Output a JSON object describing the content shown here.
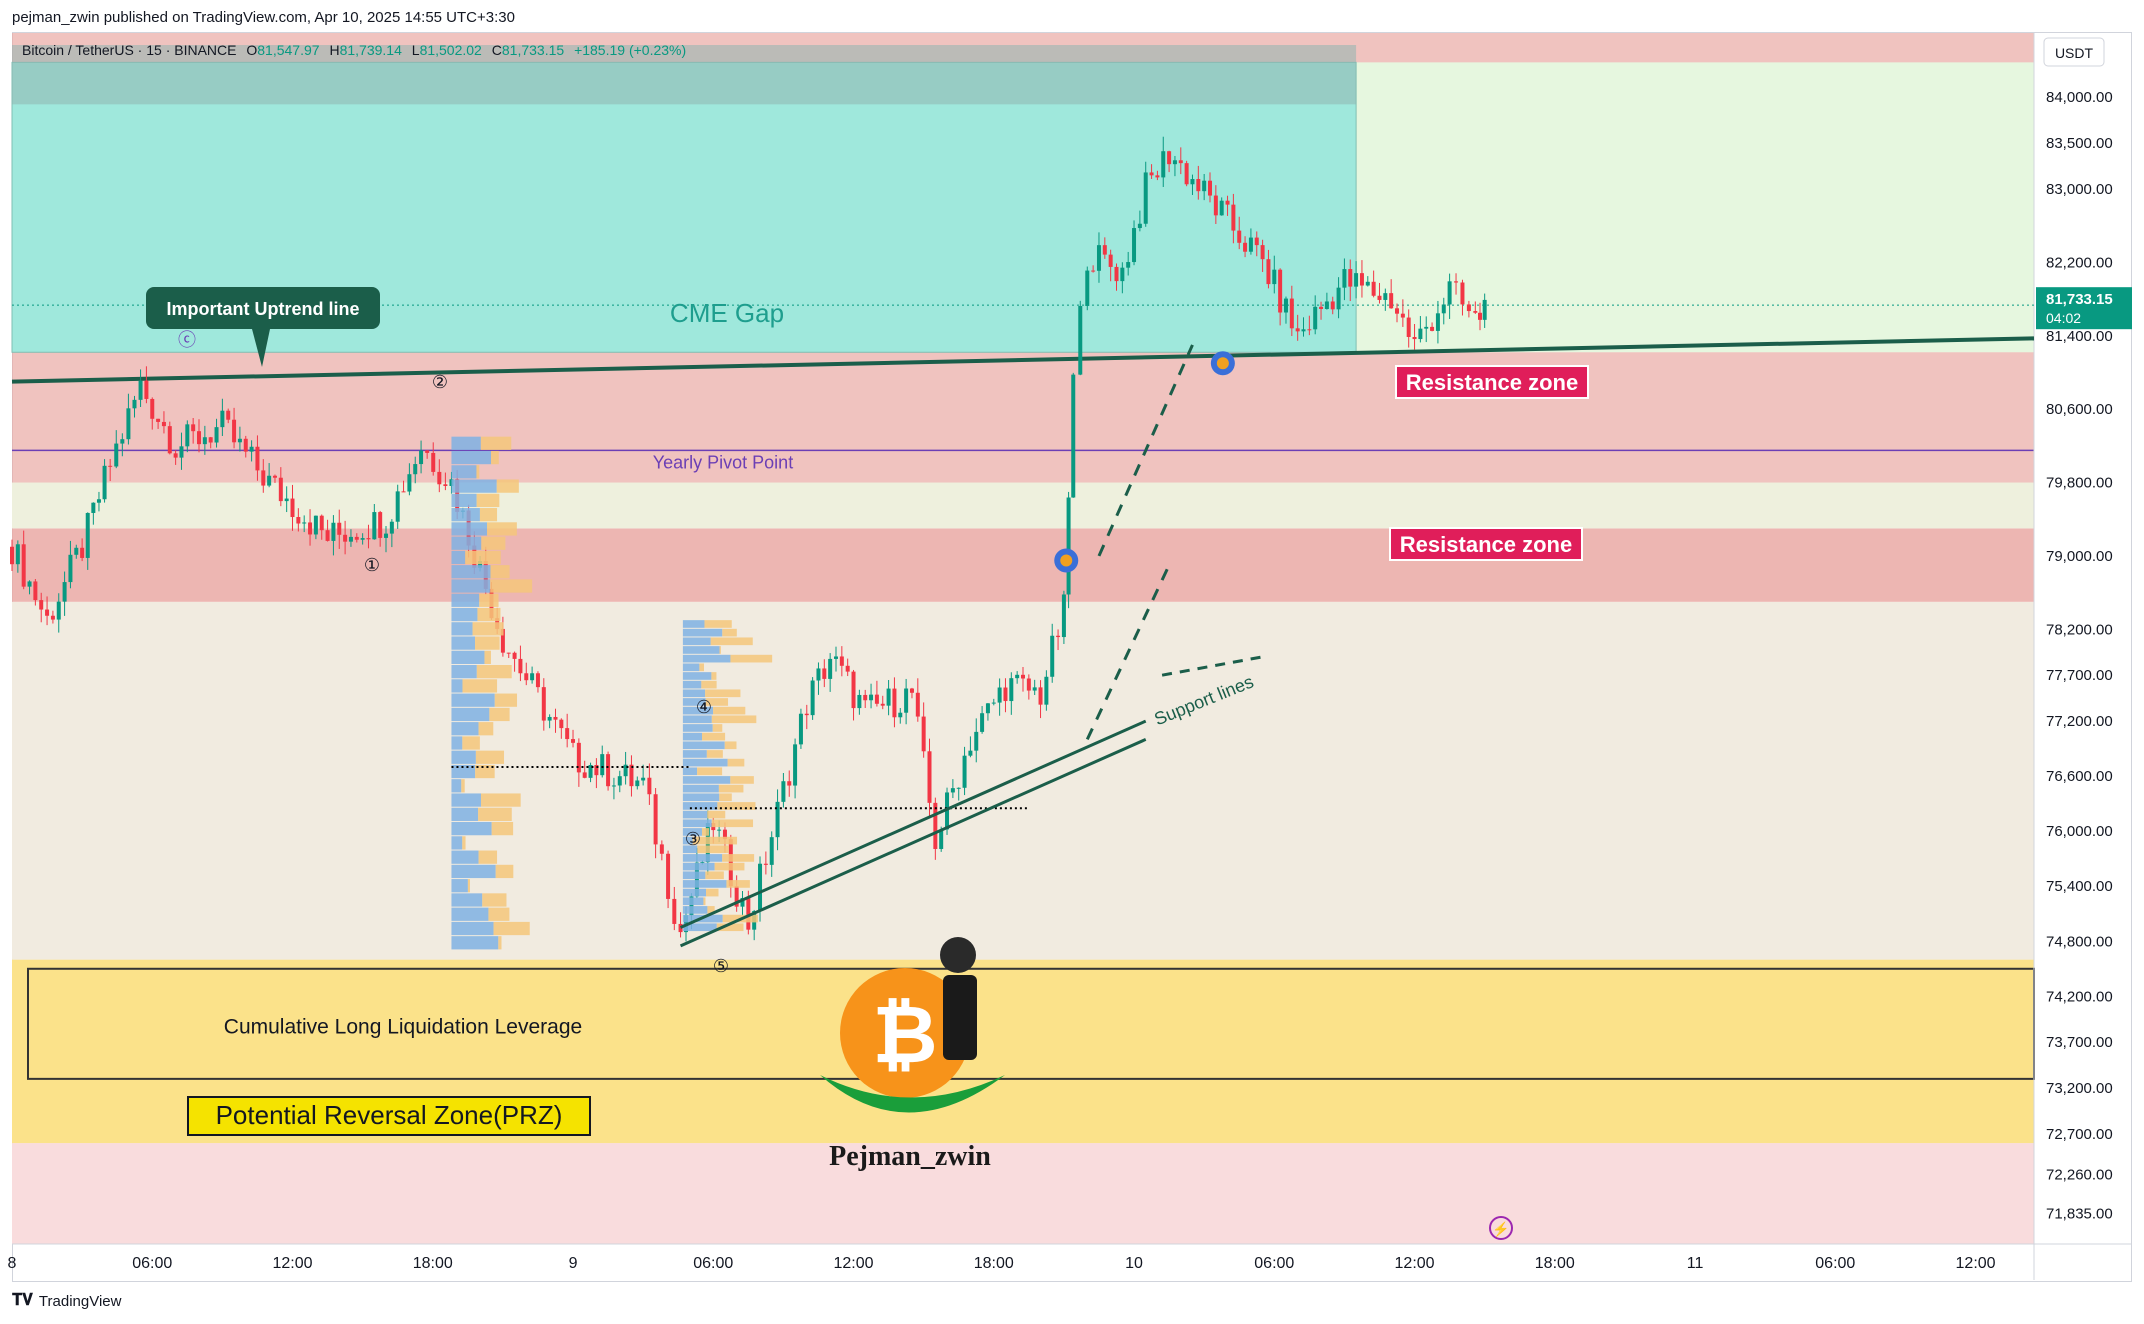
{
  "header": {
    "published": "pejman_zwin published on TradingView.com, Apr 10, 2025 14:55 UTC+3:30"
  },
  "ohlc": {
    "symbol": "Bitcoin / TetherUS · 15 · BINANCE",
    "o_label": "O",
    "o": "81,547.97",
    "h_label": "H",
    "h": "81,739.14",
    "l_label": "L",
    "l": "81,502.02",
    "c_label": "C",
    "c": "81,733.15",
    "change": "+185.19 (+0.23%)"
  },
  "footer": {
    "brand": "TradingView",
    "logo_icon": "tradingview-logo-icon"
  },
  "colors": {
    "bull": "#089981",
    "bear": "#f23645",
    "cme_gap": "#9fe8dc",
    "resistance": "#eaa9a4",
    "prz": "#fbe28a",
    "trend": "#1b5e4a",
    "pivot": "#6b3fb5",
    "label_red": "#e01e5a"
  },
  "annotations": {
    "cme_gap": "CME Gap",
    "uptrend_label": "Important Uptrend line",
    "yearly_pivot": "Yearly Pivot Point",
    "resistance_1": "Resistance zone",
    "resistance_2": "Resistance zone",
    "support_lines": "Support lines",
    "liquidation": "Cumulative Long Liquidation Leverage",
    "prz": "Potential Reversal Zone(PRZ)",
    "author": "Pejman_zwin",
    "marker_c": "ⓒ",
    "point_1": "①",
    "point_2": "②",
    "point_3": "③",
    "point_4": "④",
    "point_5": "⑤"
  },
  "chart_data": {
    "type": "candlestick",
    "symbol": "Bitcoin / TetherUS",
    "interval": "15",
    "exchange": "BINANCE",
    "currency": "USDT",
    "last_price": "81,733.15",
    "countdown": "04:02",
    "y_range": [
      71500,
      84700
    ],
    "x_range": [
      "Apr 8 00:00",
      "Apr 11 14:30"
    ],
    "y_ticks": [
      "84,000.00",
      "83,500.00",
      "83,000.00",
      "82,200.00",
      "81,400.00",
      "80,600.00",
      "79,800.00",
      "79,000.00",
      "78,200.00",
      "77,700.00",
      "77,200.00",
      "76,600.00",
      "76,000.00",
      "75,400.00",
      "74,800.00",
      "74,200.00",
      "73,700.00",
      "73,200.00",
      "72,700.00",
      "72,260.00",
      "71,835.00"
    ],
    "x_ticks": [
      {
        "label": "8",
        "h": 0
      },
      {
        "label": "06:00",
        "h": 6
      },
      {
        "label": "12:00",
        "h": 12
      },
      {
        "label": "18:00",
        "h": 18
      },
      {
        "label": "9",
        "h": 24
      },
      {
        "label": "06:00",
        "h": 30
      },
      {
        "label": "12:00",
        "h": 36
      },
      {
        "label": "18:00",
        "h": 42
      },
      {
        "label": "10",
        "h": 48
      },
      {
        "label": "06:00",
        "h": 54
      },
      {
        "label": "12:00",
        "h": 60
      },
      {
        "label": "18:00",
        "h": 66
      },
      {
        "label": "11",
        "h": 72
      },
      {
        "label": "06:00",
        "h": 78
      },
      {
        "label": "12:00",
        "h": 84
      }
    ],
    "zones": {
      "cme_gap": [
        81220,
        84380
      ],
      "resistance_upper": [
        79800,
        84700
      ],
      "resistance_lower": [
        78500,
        79300
      ],
      "prz": [
        72600,
        74600
      ],
      "liquidation_box": [
        73300,
        74500
      ]
    },
    "yearly_pivot": 80150,
    "uptrend_line": [
      {
        "h": 0,
        "p": 80900
      },
      {
        "h": 88,
        "p": 81380
      }
    ],
    "price_path": [
      {
        "h": 0,
        "p": 79100
      },
      {
        "h": 1.5,
        "p": 78300
      },
      {
        "h": 3,
        "p": 79100
      },
      {
        "h": 4.2,
        "p": 80000
      },
      {
        "h": 5.5,
        "p": 80850
      },
      {
        "h": 7,
        "p": 80200
      },
      {
        "h": 9,
        "p": 80400
      },
      {
        "h": 11,
        "p": 79800
      },
      {
        "h": 13.5,
        "p": 79200
      },
      {
        "h": 16,
        "p": 79400
      },
      {
        "h": 17.5,
        "p": 80200
      },
      {
        "h": 18.8,
        "p": 79800
      },
      {
        "h": 21,
        "p": 78100
      },
      {
        "h": 24,
        "p": 76800
      },
      {
        "h": 27,
        "p": 76500
      },
      {
        "h": 28.6,
        "p": 74900
      },
      {
        "h": 30,
        "p": 76100
      },
      {
        "h": 31.5,
        "p": 75000
      },
      {
        "h": 34,
        "p": 77400
      },
      {
        "h": 35,
        "p": 77900
      },
      {
        "h": 36.5,
        "p": 77300
      },
      {
        "h": 38.5,
        "p": 77500
      },
      {
        "h": 39.5,
        "p": 75900
      },
      {
        "h": 41,
        "p": 77000
      },
      {
        "h": 42.5,
        "p": 77600
      },
      {
        "h": 44,
        "p": 77500
      },
      {
        "h": 45,
        "p": 78400
      },
      {
        "h": 45.4,
        "p": 80900
      },
      {
        "h": 46,
        "p": 82300
      },
      {
        "h": 47.5,
        "p": 82100
      },
      {
        "h": 48.5,
        "p": 83000
      },
      {
        "h": 49.5,
        "p": 83400
      },
      {
        "h": 51.5,
        "p": 82800
      },
      {
        "h": 53.5,
        "p": 82200
      },
      {
        "h": 55,
        "p": 81400
      },
      {
        "h": 57,
        "p": 82000
      },
      {
        "h": 59,
        "p": 81800
      },
      {
        "h": 60,
        "p": 81300
      },
      {
        "h": 61.5,
        "p": 81900
      },
      {
        "h": 62.6,
        "p": 81550
      },
      {
        "h": 63,
        "p": 81733
      }
    ]
  }
}
